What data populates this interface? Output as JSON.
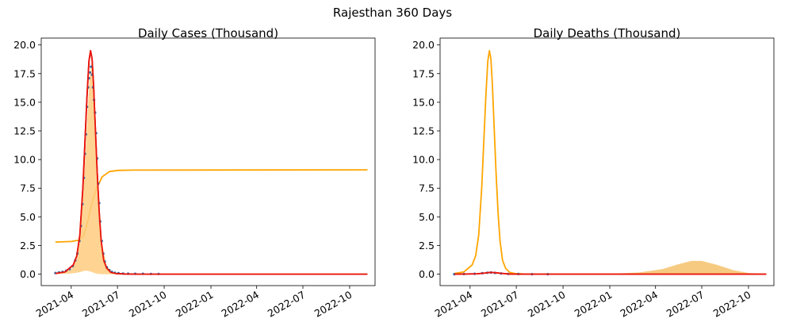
{
  "figure_title": "Rajesthan 360 Days",
  "colors": {
    "fit_line": "#e8150d",
    "orange_line": "#ffa500",
    "orange_fill": "#ffcc80",
    "orange_fill_2": "#f5c26b",
    "observed_points": "#3b6fa8",
    "axis": "#000000"
  },
  "chart_data": [
    {
      "type": "line",
      "title": "Daily Cases (Thousand)",
      "xlabel": "",
      "ylabel": "",
      "x_axis": "date",
      "xlim": [
        "2021-02-01",
        "2022-11-20"
      ],
      "ylim": [
        -1.0,
        20.6
      ],
      "yticks": [
        0.0,
        2.5,
        5.0,
        7.5,
        10.0,
        12.5,
        15.0,
        17.5,
        20.0
      ],
      "ytick_labels": [
        "0.0",
        "2.5",
        "5.0",
        "7.5",
        "10.0",
        "12.5",
        "15.0",
        "17.5",
        "20.0"
      ],
      "xticks": [
        "2021-04-01",
        "2021-07-01",
        "2021-10-01",
        "2022-01-01",
        "2022-04-01",
        "2022-07-01",
        "2022-10-01"
      ],
      "xtick_labels": [
        "2021-04",
        "2021-07",
        "2021-10",
        "2022-01",
        "2022-04",
        "2022-07",
        "2022-10"
      ],
      "grid": false,
      "series": [
        {
          "kind": "line",
          "color": "#e8150d",
          "x": [
            "2021-03-01",
            "2021-03-20",
            "2021-04-05",
            "2021-04-12",
            "2021-04-18",
            "2021-04-24",
            "2021-04-28",
            "2021-05-02",
            "2021-05-06",
            "2021-05-09",
            "2021-05-12",
            "2021-05-15",
            "2021-05-18",
            "2021-05-22",
            "2021-05-26",
            "2021-05-30",
            "2021-06-04",
            "2021-06-10",
            "2021-06-18",
            "2021-06-28",
            "2021-07-15",
            "2021-08-15",
            "2022-11-05"
          ],
          "y": [
            0.05,
            0.2,
            0.8,
            1.6,
            3.4,
            7.5,
            11.5,
            15.5,
            18.6,
            19.5,
            18.8,
            16.5,
            13.3,
            9.0,
            5.4,
            2.9,
            1.2,
            0.5,
            0.15,
            0.05,
            0.02,
            0.0,
            0.0
          ]
        },
        {
          "kind": "line",
          "color": "#ffa500",
          "x": [
            "2021-03-01",
            "2021-04-01",
            "2021-04-15",
            "2021-04-25",
            "2021-05-02",
            "2021-05-10",
            "2021-05-20",
            "2021-06-01",
            "2021-06-15",
            "2021-07-01",
            "2021-08-01",
            "2022-11-05"
          ],
          "y": [
            2.8,
            2.85,
            2.95,
            3.3,
            4.3,
            5.9,
            7.4,
            8.5,
            8.95,
            9.05,
            9.08,
            9.1
          ]
        },
        {
          "kind": "area",
          "color": "#ffcc80",
          "x": [
            "2021-03-01",
            "2021-04-01",
            "2021-04-12",
            "2021-04-20",
            "2021-04-26",
            "2021-05-02",
            "2021-05-07",
            "2021-05-11",
            "2021-05-15",
            "2021-05-20",
            "2021-05-25",
            "2021-06-01",
            "2021-06-10",
            "2021-06-20",
            "2021-07-10",
            "2021-08-01"
          ],
          "upper": [
            0.05,
            0.4,
            1.3,
            4.0,
            7.9,
            13.0,
            17.1,
            18.4,
            17.0,
            12.5,
            7.0,
            2.6,
            0.7,
            0.2,
            0.05,
            0.0
          ],
          "lower": [
            0.0,
            0.05,
            0.12,
            0.2,
            0.28,
            0.3,
            0.25,
            0.2,
            0.12,
            0.05,
            0.02,
            0.0,
            0.0,
            0.0,
            0.0,
            0.0
          ]
        },
        {
          "kind": "scatter",
          "color": "#3b6fa8",
          "x": [
            "2021-03-01",
            "2021-03-08",
            "2021-03-15",
            "2021-03-22",
            "2021-03-29",
            "2021-04-04",
            "2021-04-09",
            "2021-04-13",
            "2021-04-17",
            "2021-04-20",
            "2021-04-23",
            "2021-04-26",
            "2021-04-28",
            "2021-04-30",
            "2021-05-02",
            "2021-05-04",
            "2021-05-06",
            "2021-05-08",
            "2021-05-10",
            "2021-05-12",
            "2021-05-14",
            "2021-05-16",
            "2021-05-18",
            "2021-05-20",
            "2021-05-22",
            "2021-05-24",
            "2021-05-26",
            "2021-05-28",
            "2021-05-31",
            "2021-06-03",
            "2021-06-06",
            "2021-06-10",
            "2021-06-15",
            "2021-06-20",
            "2021-06-26",
            "2021-07-03",
            "2021-07-12",
            "2021-07-22",
            "2021-08-05",
            "2021-08-20",
            "2021-09-05",
            "2021-09-20"
          ],
          "y": [
            0.1,
            0.15,
            0.2,
            0.3,
            0.45,
            0.7,
            1.2,
            1.8,
            2.9,
            4.2,
            6.1,
            8.4,
            10.5,
            12.2,
            14.6,
            16.3,
            17.1,
            17.6,
            18.1,
            17.4,
            16.3,
            15.2,
            14.1,
            12.3,
            10.1,
            7.9,
            6.2,
            4.6,
            2.9,
            1.8,
            1.1,
            0.6,
            0.35,
            0.2,
            0.12,
            0.08,
            0.05,
            0.04,
            0.03,
            0.03,
            0.02,
            0.02
          ]
        }
      ]
    },
    {
      "type": "line",
      "title": "Daily Deaths (Thousand)",
      "xlabel": "",
      "ylabel": "",
      "x_axis": "date",
      "xlim": [
        "2021-02-01",
        "2022-11-20"
      ],
      "ylim": [
        -1.0,
        20.6
      ],
      "yticks": [
        0.0,
        2.5,
        5.0,
        7.5,
        10.0,
        12.5,
        15.0,
        17.5,
        20.0
      ],
      "ytick_labels": [
        "0.0",
        "2.5",
        "5.0",
        "7.5",
        "10.0",
        "12.5",
        "15.0",
        "17.5",
        "20.0"
      ],
      "xticks": [
        "2021-04-01",
        "2021-07-01",
        "2021-10-01",
        "2022-01-01",
        "2022-04-01",
        "2022-07-01",
        "2022-10-01"
      ],
      "xtick_labels": [
        "2021-04",
        "2021-07",
        "2021-10",
        "2022-01",
        "2022-04",
        "2022-07",
        "2022-10"
      ],
      "grid": false,
      "series": [
        {
          "kind": "area",
          "color": "#f5c26b",
          "x": [
            "2021-10-01",
            "2022-01-01",
            "2022-03-01",
            "2022-04-15",
            "2022-05-15",
            "2022-06-10",
            "2022-07-01",
            "2022-08-01",
            "2022-09-01",
            "2022-10-01",
            "2022-11-05"
          ],
          "upper": [
            0.0,
            0.02,
            0.15,
            0.45,
            0.85,
            1.15,
            1.15,
            0.8,
            0.35,
            0.1,
            0.02
          ],
          "lower": [
            0,
            0,
            0,
            0,
            0,
            0,
            0,
            0,
            0,
            0,
            0
          ]
        },
        {
          "kind": "line",
          "color": "#ffa500",
          "x": [
            "2021-03-01",
            "2021-03-20",
            "2021-04-05",
            "2021-04-12",
            "2021-04-18",
            "2021-04-24",
            "2021-04-28",
            "2021-05-02",
            "2021-05-06",
            "2021-05-09",
            "2021-05-12",
            "2021-05-15",
            "2021-05-18",
            "2021-05-22",
            "2021-05-26",
            "2021-05-30",
            "2021-06-04",
            "2021-06-10",
            "2021-06-18",
            "2021-06-28",
            "2021-07-15",
            "2021-08-15",
            "2022-11-05"
          ],
          "y": [
            0.05,
            0.2,
            0.8,
            1.6,
            3.4,
            7.5,
            11.5,
            15.5,
            18.6,
            19.5,
            18.8,
            16.5,
            13.3,
            9.0,
            5.4,
            2.9,
            1.2,
            0.5,
            0.15,
            0.05,
            0.02,
            0.0,
            0.0
          ]
        },
        {
          "kind": "line",
          "color": "#e8150d",
          "x": [
            "2021-03-01",
            "2021-04-15",
            "2021-05-01",
            "2021-05-10",
            "2021-05-20",
            "2021-06-01",
            "2021-06-15",
            "2021-07-01",
            "2022-11-05"
          ],
          "y": [
            0.0,
            0.03,
            0.1,
            0.15,
            0.13,
            0.07,
            0.02,
            0.0,
            0.0
          ]
        },
        {
          "kind": "scatter",
          "color": "#3b6fa8",
          "x": [
            "2021-03-01",
            "2021-03-20",
            "2021-04-10",
            "2021-04-25",
            "2021-05-05",
            "2021-05-12",
            "2021-05-20",
            "2021-06-01",
            "2021-06-15",
            "2021-07-05",
            "2021-08-01",
            "2021-09-01"
          ],
          "y": [
            0.0,
            0.01,
            0.03,
            0.08,
            0.12,
            0.14,
            0.11,
            0.06,
            0.02,
            0.01,
            0.0,
            0.0
          ]
        }
      ]
    }
  ]
}
